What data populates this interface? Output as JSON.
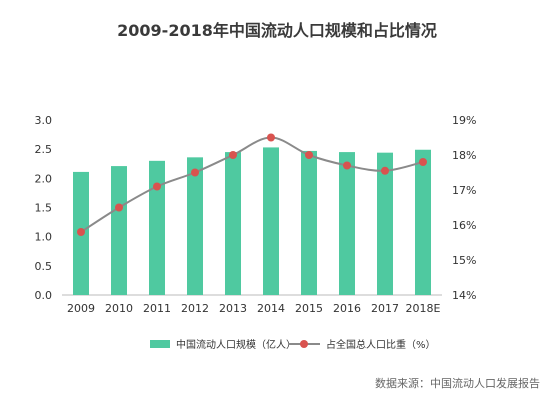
{
  "title": "2009-2018年中国流动人口规模和占比情况",
  "source": "数据来源：中国流动人口发展报告",
  "colors": {
    "bar": "#4fc9a0",
    "line": "#8a8a8a",
    "marker": "#d9534f",
    "axis_text": "#333333"
  },
  "chart_data": {
    "type": "bar",
    "categories": [
      "2009",
      "2010",
      "2011",
      "2012",
      "2013",
      "2014",
      "2015",
      "2016",
      "2017",
      "2018E"
    ],
    "series": [
      {
        "name": "中国流动人口规模（亿人）",
        "type": "bar",
        "axis": "left",
        "values": [
          2.11,
          2.21,
          2.3,
          2.36,
          2.45,
          2.53,
          2.47,
          2.45,
          2.44,
          2.49
        ]
      },
      {
        "name": "占全国总人口比重（%）",
        "type": "line",
        "axis": "right",
        "values": [
          15.8,
          16.5,
          17.1,
          17.5,
          18.0,
          18.5,
          18.0,
          17.7,
          17.55,
          17.8
        ]
      }
    ],
    "y_left": {
      "min": 0,
      "max": 3.0,
      "ticks": [
        "0.0",
        "0.5",
        "1.0",
        "1.5",
        "2.0",
        "2.5",
        "3.0"
      ]
    },
    "y_right": {
      "min": 14,
      "max": 19,
      "ticks": [
        "14%",
        "15%",
        "16%",
        "17%",
        "18%",
        "19%"
      ]
    },
    "grid": false,
    "legend_position": "bottom"
  }
}
